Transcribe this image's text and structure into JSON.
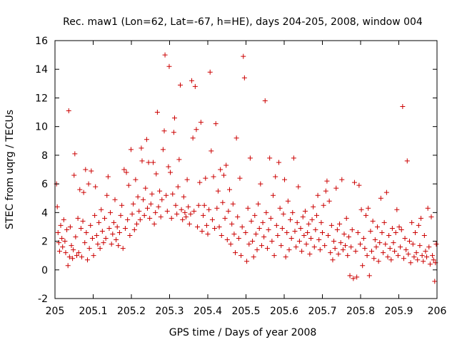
{
  "chart_data": {
    "type": "scatter",
    "title": "Rec. maw1 (Lon=62, Lat=-67, h=HE), days 204-205, 2008, window 004",
    "xlabel": "GPS time / Days of year 2008",
    "ylabel": "STEC from uqrg / TECUs",
    "xlim": [
      205,
      206
    ],
    "ylim": [
      -2,
      16
    ],
    "xticks": [
      205,
      205.1,
      205.2,
      205.3,
      205.4,
      205.5,
      205.6,
      205.7,
      205.8,
      205.9,
      206
    ],
    "xtick_labels": [
      "205",
      "205.1",
      "205.2",
      "205.3",
      "205.4",
      "205.5",
      "205.6",
      "205.7",
      "205.8",
      "205.9",
      "206"
    ],
    "yticks": [
      -2,
      0,
      2,
      4,
      6,
      8,
      10,
      12,
      14,
      16
    ],
    "ytick_labels": [
      "-2",
      "0",
      "2",
      "4",
      "6",
      "8",
      "10",
      "12",
      "14",
      "16"
    ],
    "marker": "+",
    "color": "#cc0000",
    "points": [
      [
        205.004,
        6.0
      ],
      [
        205.006,
        4.4
      ],
      [
        205.008,
        2.6
      ],
      [
        205.01,
        1.9
      ],
      [
        205.012,
        1.3
      ],
      [
        205.015,
        3.1
      ],
      [
        205.018,
        2.2
      ],
      [
        205.02,
        1.6
      ],
      [
        205.023,
        3.5
      ],
      [
        205.026,
        2.0
      ],
      [
        205.028,
        1.2
      ],
      [
        205.031,
        2.8
      ],
      [
        205.034,
        0.3
      ],
      [
        205.036,
        11.1
      ],
      [
        205.038,
        0.9
      ],
      [
        205.04,
        3.0
      ],
      [
        205.043,
        1.7
      ],
      [
        205.046,
        0.8
      ],
      [
        205.048,
        1.4
      ],
      [
        205.05,
        6.6
      ],
      [
        205.052,
        8.1
      ],
      [
        205.054,
        2.3
      ],
      [
        205.057,
        1.0
      ],
      [
        205.06,
        3.6
      ],
      [
        205.062,
        1.2
      ],
      [
        205.065,
        5.6
      ],
      [
        205.068,
        2.9
      ],
      [
        205.07,
        0.9
      ],
      [
        205.073,
        3.4
      ],
      [
        205.075,
        5.4
      ],
      [
        205.078,
        1.9
      ],
      [
        205.08,
        7.0
      ],
      [
        205.082,
        2.6
      ],
      [
        205.085,
        0.7
      ],
      [
        205.088,
        6.0
      ],
      [
        205.09,
        1.5
      ],
      [
        205.093,
        3.1
      ],
      [
        205.095,
        6.9
      ],
      [
        205.098,
        2.2
      ],
      [
        205.101,
        1.0
      ],
      [
        205.104,
        3.8
      ],
      [
        205.106,
        5.8
      ],
      [
        205.109,
        2.4
      ],
      [
        205.112,
        1.8
      ],
      [
        205.115,
        3.3
      ],
      [
        205.118,
        1.5
      ],
      [
        205.121,
        4.2
      ],
      [
        205.124,
        2.7
      ],
      [
        205.127,
        1.9
      ],
      [
        205.13,
        3.6
      ],
      [
        205.133,
        2.2
      ],
      [
        205.136,
        5.2
      ],
      [
        205.139,
        6.5
      ],
      [
        205.142,
        2.9
      ],
      [
        205.145,
        4.0
      ],
      [
        205.148,
        1.8
      ],
      [
        205.151,
        2.5
      ],
      [
        205.154,
        3.3
      ],
      [
        205.157,
        4.9
      ],
      [
        205.16,
        2.1
      ],
      [
        205.163,
        3.0
      ],
      [
        205.166,
        1.7
      ],
      [
        205.169,
        2.6
      ],
      [
        205.172,
        3.8
      ],
      [
        205.175,
        4.5
      ],
      [
        205.178,
        1.5
      ],
      [
        205.181,
        7.0
      ],
      [
        205.184,
        2.9
      ],
      [
        205.187,
        6.8
      ],
      [
        205.19,
        3.5
      ],
      [
        205.193,
        5.9
      ],
      [
        205.196,
        2.4
      ],
      [
        205.199,
        8.4
      ],
      [
        205.202,
        3.9
      ],
      [
        205.205,
        4.6
      ],
      [
        205.208,
        2.8
      ],
      [
        205.211,
        6.3
      ],
      [
        205.214,
        3.2
      ],
      [
        205.217,
        5.1
      ],
      [
        205.22,
        4.1
      ],
      [
        205.223,
        3.5
      ],
      [
        205.226,
        8.5
      ],
      [
        205.228,
        7.6
      ],
      [
        205.231,
        4.9
      ],
      [
        205.234,
        3.8
      ],
      [
        205.237,
        5.7
      ],
      [
        205.24,
        9.1
      ],
      [
        205.242,
        4.3
      ],
      [
        205.245,
        7.5
      ],
      [
        205.248,
        3.6
      ],
      [
        205.251,
        4.6
      ],
      [
        205.254,
        5.3
      ],
      [
        205.257,
        7.5
      ],
      [
        205.26,
        3.2
      ],
      [
        205.263,
        4.0
      ],
      [
        205.265,
        6.7
      ],
      [
        205.268,
        11.0
      ],
      [
        205.271,
        4.4
      ],
      [
        205.274,
        5.5
      ],
      [
        205.277,
        3.7
      ],
      [
        205.28,
        4.9
      ],
      [
        205.283,
        8.4
      ],
      [
        205.286,
        9.7
      ],
      [
        205.288,
        15.0
      ],
      [
        205.291,
        5.2
      ],
      [
        205.294,
        4.1
      ],
      [
        205.297,
        7.2
      ],
      [
        205.299,
        14.2
      ],
      [
        205.302,
        6.8
      ],
      [
        205.305,
        3.6
      ],
      [
        205.308,
        5.3
      ],
      [
        205.311,
        9.6
      ],
      [
        205.313,
        10.6
      ],
      [
        205.316,
        4.5
      ],
      [
        205.319,
        3.9
      ],
      [
        205.322,
        5.8
      ],
      [
        205.325,
        7.7
      ],
      [
        205.328,
        12.9
      ],
      [
        205.331,
        4.2
      ],
      [
        205.334,
        3.5
      ],
      [
        205.337,
        5.1
      ],
      [
        205.34,
        4.0
      ],
      [
        205.343,
        3.7
      ],
      [
        205.346,
        6.3
      ],
      [
        205.349,
        4.4
      ],
      [
        205.352,
        3.2
      ],
      [
        205.355,
        3.9
      ],
      [
        205.358,
        13.2
      ],
      [
        205.361,
        9.2
      ],
      [
        205.364,
        4.1
      ],
      [
        205.367,
        12.8
      ],
      [
        205.37,
        9.8
      ],
      [
        205.373,
        3.0
      ],
      [
        205.376,
        4.5
      ],
      [
        205.379,
        6.1
      ],
      [
        205.382,
        10.3
      ],
      [
        205.385,
        2.7
      ],
      [
        205.388,
        3.8
      ],
      [
        205.391,
        4.5
      ],
      [
        205.394,
        6.4
      ],
      [
        205.397,
        3.1
      ],
      [
        205.4,
        2.5
      ],
      [
        205.403,
        4.2
      ],
      [
        205.406,
        13.8
      ],
      [
        205.409,
        8.3
      ],
      [
        205.412,
        3.5
      ],
      [
        205.415,
        6.5
      ],
      [
        205.418,
        2.9
      ],
      [
        205.421,
        10.2
      ],
      [
        205.424,
        4.3
      ],
      [
        205.427,
        5.5
      ],
      [
        205.43,
        3.0
      ],
      [
        205.433,
        7.0
      ],
      [
        205.436,
        2.4
      ],
      [
        205.439,
        4.7
      ],
      [
        205.442,
        6.6
      ],
      [
        205.445,
        3.6
      ],
      [
        205.448,
        7.3
      ],
      [
        205.451,
        2.1
      ],
      [
        205.454,
        4.1
      ],
      [
        205.457,
        5.6
      ],
      [
        205.46,
        1.8
      ],
      [
        205.463,
        3.2
      ],
      [
        205.466,
        4.6
      ],
      [
        205.469,
        2.5
      ],
      [
        205.472,
        1.2
      ],
      [
        205.475,
        9.2
      ],
      [
        205.478,
        3.7
      ],
      [
        205.481,
        2.2
      ],
      [
        205.484,
        6.4
      ],
      [
        205.487,
        1.0
      ],
      [
        205.49,
        3.0
      ],
      [
        205.493,
        14.9
      ],
      [
        205.496,
        13.4
      ],
      [
        205.499,
        2.6
      ],
      [
        205.502,
        0.6
      ],
      [
        205.505,
        4.3
      ],
      [
        205.508,
        1.8
      ],
      [
        205.511,
        7.8
      ],
      [
        205.514,
        3.4
      ],
      [
        205.517,
        2.0
      ],
      [
        205.52,
        0.9
      ],
      [
        205.523,
        3.8
      ],
      [
        205.526,
        2.5
      ],
      [
        205.529,
        1.4
      ],
      [
        205.532,
        4.6
      ],
      [
        205.535,
        2.9
      ],
      [
        205.538,
        6.0
      ],
      [
        205.541,
        1.7
      ],
      [
        205.544,
        3.3
      ],
      [
        205.547,
        2.3
      ],
      [
        205.55,
        11.8
      ],
      [
        205.553,
        4.0
      ],
      [
        205.556,
        1.5
      ],
      [
        205.559,
        2.8
      ],
      [
        205.562,
        7.8
      ],
      [
        205.565,
        3.6
      ],
      [
        205.568,
        2.0
      ],
      [
        205.571,
        5.2
      ],
      [
        205.574,
        1.0
      ],
      [
        205.577,
        6.5
      ],
      [
        205.58,
        3.1
      ],
      [
        205.583,
        2.4
      ],
      [
        205.586,
        7.5
      ],
      [
        205.589,
        4.3
      ],
      [
        205.592,
        1.7
      ],
      [
        205.595,
        2.9
      ],
      [
        205.598,
        3.9
      ],
      [
        205.601,
        6.3
      ],
      [
        205.604,
        0.9
      ],
      [
        205.607,
        2.6
      ],
      [
        205.61,
        4.8
      ],
      [
        205.613,
        1.4
      ],
      [
        205.616,
        3.5
      ],
      [
        205.619,
        2.2
      ],
      [
        205.622,
        4.0
      ],
      [
        205.625,
        7.8
      ],
      [
        205.628,
        2.7
      ],
      [
        205.631,
        1.6
      ],
      [
        205.634,
        3.3
      ],
      [
        205.637,
        5.8
      ],
      [
        205.64,
        2.0
      ],
      [
        205.643,
        2.9
      ],
      [
        205.646,
        1.3
      ],
      [
        205.649,
        3.7
      ],
      [
        205.652,
        2.4
      ],
      [
        205.655,
        4.1
      ],
      [
        205.658,
        1.8
      ],
      [
        205.661,
        2.6
      ],
      [
        205.664,
        3.2
      ],
      [
        205.667,
        1.1
      ],
      [
        205.67,
        2.2
      ],
      [
        205.673,
        3.5
      ],
      [
        205.676,
        4.4
      ],
      [
        205.679,
        1.6
      ],
      [
        205.682,
        2.8
      ],
      [
        205.685,
        3.8
      ],
      [
        205.688,
        5.2
      ],
      [
        205.691,
        2.1
      ],
      [
        205.694,
        1.4
      ],
      [
        205.697,
        3.3
      ],
      [
        205.7,
        2.6
      ],
      [
        205.703,
        4.5
      ],
      [
        205.706,
        1.7
      ],
      [
        205.709,
        5.5
      ],
      [
        205.712,
        6.2
      ],
      [
        205.715,
        2.4
      ],
      [
        205.718,
        4.8
      ],
      [
        205.721,
        1.2
      ],
      [
        205.724,
        3.1
      ],
      [
        205.727,
        0.7
      ],
      [
        205.73,
        2.0
      ],
      [
        205.733,
        1.5
      ],
      [
        205.736,
        5.7
      ],
      [
        205.739,
        2.8
      ],
      [
        205.742,
        1.1
      ],
      [
        205.745,
        3.2
      ],
      [
        205.748,
        1.9
      ],
      [
        205.751,
        6.3
      ],
      [
        205.754,
        1.4
      ],
      [
        205.757,
        2.5
      ],
      [
        205.76,
        1.7
      ],
      [
        205.763,
        3.6
      ],
      [
        205.766,
        1.0
      ],
      [
        205.769,
        2.3
      ],
      [
        205.772,
        -0.4
      ],
      [
        205.775,
        1.6
      ],
      [
        205.778,
        2.8
      ],
      [
        205.781,
        -0.6
      ],
      [
        205.784,
        6.1
      ],
      [
        205.787,
        1.3
      ],
      [
        205.79,
        -0.5
      ],
      [
        205.793,
        2.6
      ],
      [
        205.796,
        5.9
      ],
      [
        205.799,
        1.8
      ],
      [
        205.802,
        4.2
      ],
      [
        205.805,
        0.3
      ],
      [
        205.808,
        2.2
      ],
      [
        205.811,
        1.5
      ],
      [
        205.814,
        3.8
      ],
      [
        205.817,
        1.0
      ],
      [
        205.82,
        4.3
      ],
      [
        205.823,
        -0.4
      ],
      [
        205.826,
        2.7
      ],
      [
        205.829,
        1.3
      ],
      [
        205.832,
        3.4
      ],
      [
        205.835,
        0.8
      ],
      [
        205.838,
        2.1
      ],
      [
        205.841,
        1.6
      ],
      [
        205.844,
        3.0
      ],
      [
        205.847,
        0.6
      ],
      [
        205.85,
        1.9
      ],
      [
        205.853,
        5.0
      ],
      [
        205.856,
        2.6
      ],
      [
        205.859,
        1.2
      ],
      [
        205.862,
        3.3
      ],
      [
        205.865,
        1.8
      ],
      [
        205.868,
        5.4
      ],
      [
        205.871,
        0.9
      ],
      [
        205.874,
        2.4
      ],
      [
        205.877,
        1.5
      ],
      [
        205.88,
        0.7
      ],
      [
        205.883,
        2.9
      ],
      [
        205.886,
        1.9
      ],
      [
        205.889,
        1.3
      ],
      [
        205.892,
        2.6
      ],
      [
        205.895,
        4.2
      ],
      [
        205.898,
        1.0
      ],
      [
        205.901,
        3.0
      ],
      [
        205.904,
        1.6
      ],
      [
        205.907,
        2.8
      ],
      [
        205.91,
        11.4
      ],
      [
        205.913,
        0.8
      ],
      [
        205.916,
        2.2
      ],
      [
        205.919,
        1.4
      ],
      [
        205.922,
        7.6
      ],
      [
        205.925,
        1.1
      ],
      [
        205.928,
        2.0
      ],
      [
        205.931,
        0.5
      ],
      [
        205.934,
        3.3
      ],
      [
        205.937,
        1.8
      ],
      [
        205.94,
        0.9
      ],
      [
        205.943,
        2.6
      ],
      [
        205.946,
        1.2
      ],
      [
        205.949,
        0.7
      ],
      [
        205.952,
        3.1
      ],
      [
        205.955,
        1.7
      ],
      [
        205.958,
        3.6
      ],
      [
        205.961,
        1.0
      ],
      [
        205.964,
        0.6
      ],
      [
        205.967,
        2.4
      ],
      [
        205.97,
        1.3
      ],
      [
        205.973,
        0.9
      ],
      [
        205.976,
        4.3
      ],
      [
        205.979,
        1.6
      ],
      [
        205.982,
        0.4
      ],
      [
        205.985,
        3.7
      ],
      [
        205.988,
        1.0
      ],
      [
        205.991,
        0.7
      ],
      [
        205.994,
        -0.8
      ],
      [
        205.996,
        0.5
      ],
      [
        205.998,
        1.8
      ]
    ]
  }
}
